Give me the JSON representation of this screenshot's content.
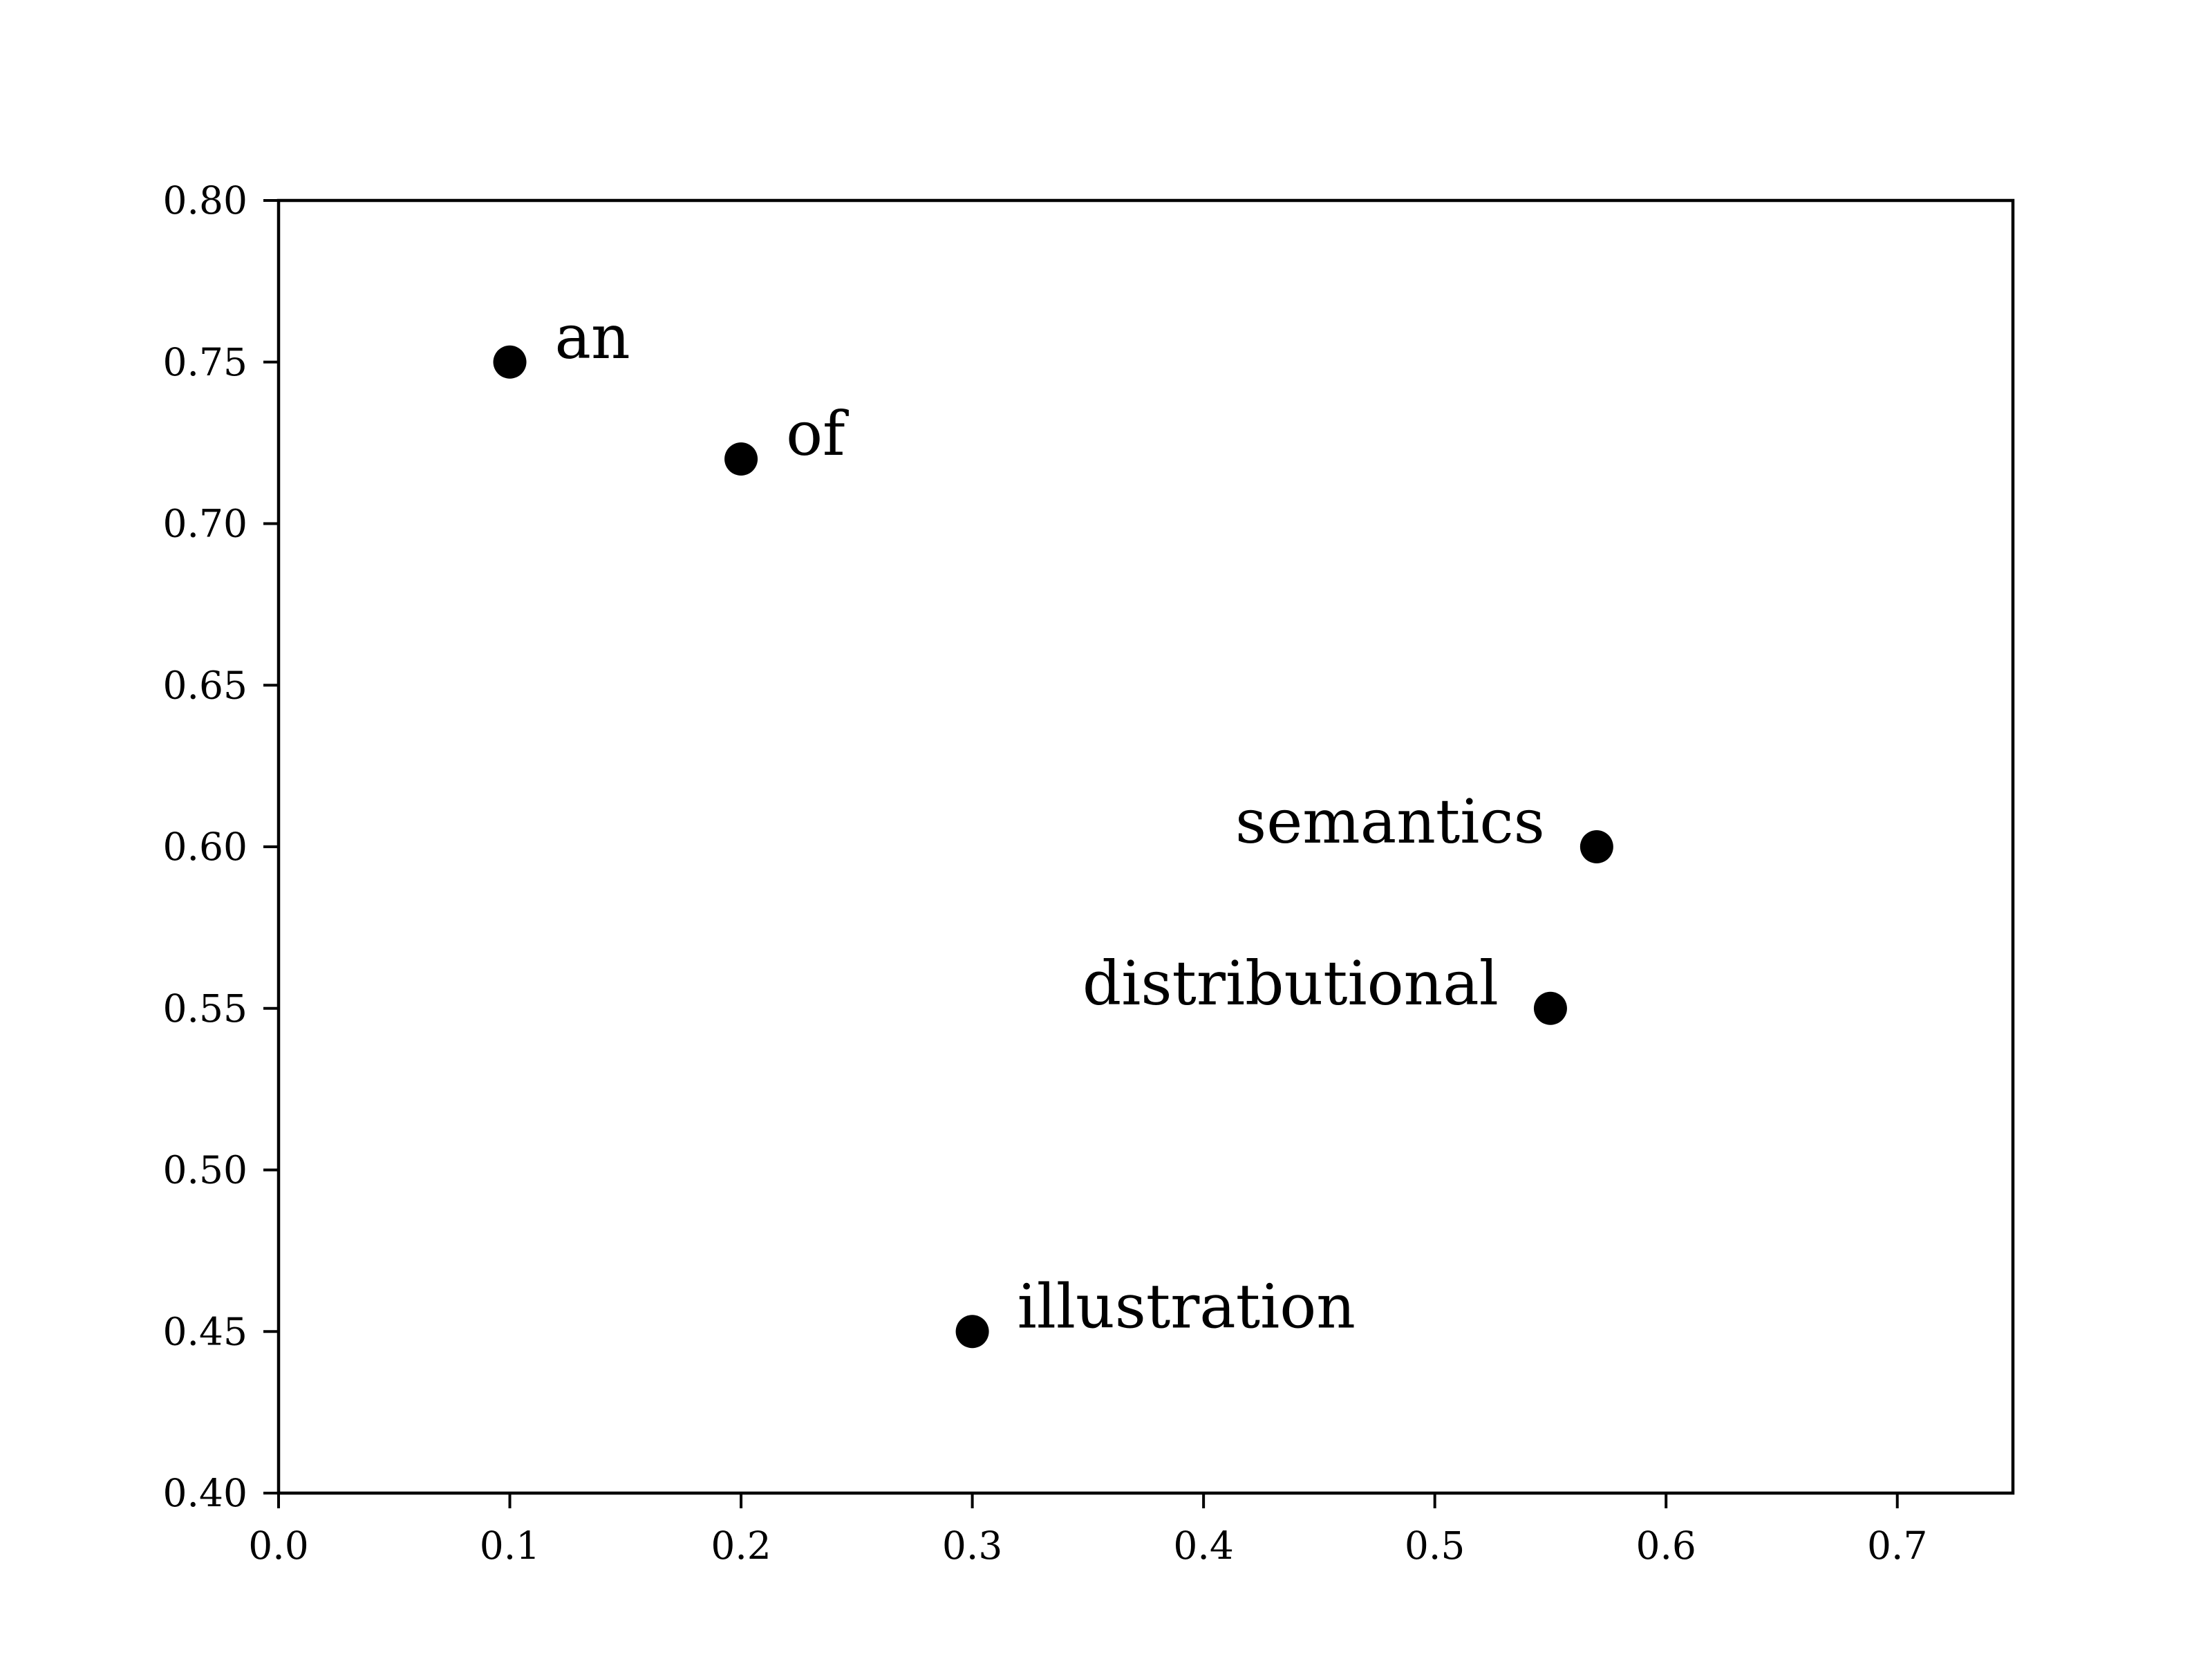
{
  "chart_data": {
    "type": "scatter",
    "title": "",
    "xlabel": "",
    "ylabel": "",
    "xlim": [
      0.0,
      0.75
    ],
    "ylim": [
      0.4,
      0.8
    ],
    "xticks": [
      "0.0",
      "0.1",
      "0.2",
      "0.3",
      "0.4",
      "0.5",
      "0.6",
      "0.7"
    ],
    "yticks": [
      "0.40",
      "0.45",
      "0.50",
      "0.55",
      "0.60",
      "0.65",
      "0.70",
      "0.75",
      "0.80"
    ],
    "grid": false,
    "legend": "none",
    "marker_color": "#000000",
    "points": [
      {
        "label": "an",
        "x": 0.1,
        "y": 0.75,
        "label_side": "right"
      },
      {
        "label": "of",
        "x": 0.2,
        "y": 0.72,
        "label_side": "right"
      },
      {
        "label": "semantics",
        "x": 0.57,
        "y": 0.6,
        "label_side": "left"
      },
      {
        "label": "distributional",
        "x": 0.55,
        "y": 0.55,
        "label_side": "left"
      },
      {
        "label": "illustration",
        "x": 0.3,
        "y": 0.45,
        "label_side": "right"
      }
    ]
  }
}
